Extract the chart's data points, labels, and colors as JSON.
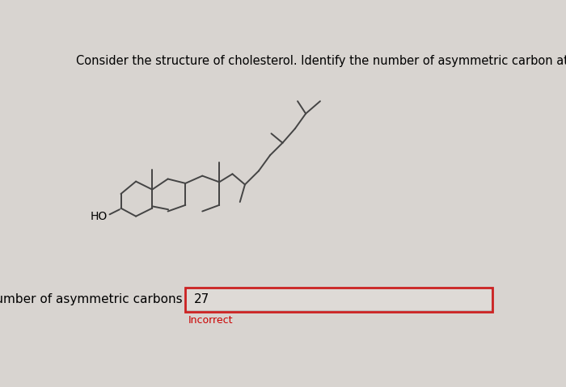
{
  "background_color": "#d8d4d0",
  "question_text": "Consider the structure of cholesterol. Identify the number of asymmetric carbon atoms in the structure.",
  "label_text": "Number of asymmetric carbons",
  "answer_value": "27",
  "incorrect_text": "Incorrect",
  "incorrect_color": "#cc0000",
  "box_border_color": "#cc2222",
  "box_fill_color": "#e8e4e0",
  "answer_fontsize": 11,
  "label_fontsize": 11,
  "question_fontsize": 10.5,
  "line_color": "#444444",
  "line_width": 1.4,
  "structure": {
    "ox": 175,
    "oy": 270,
    "sx": 33,
    "sy": 28
  }
}
